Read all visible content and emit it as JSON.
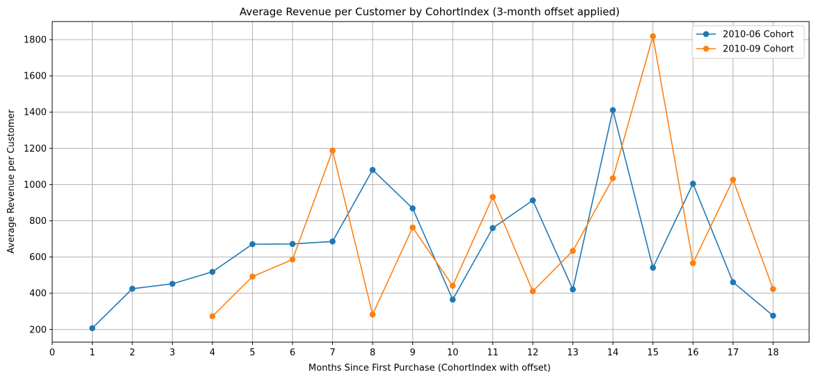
{
  "chart_data": {
    "type": "line",
    "title": "Average Revenue per Customer by CohortIndex (3-month offset applied)",
    "xlabel": "Months Since First Purchase (CohortIndex with offset)",
    "ylabel": "Average Revenue per Customer",
    "xlim": [
      0,
      18.9
    ],
    "ylim": [
      130,
      1900
    ],
    "x_ticks": [
      0,
      1,
      2,
      3,
      4,
      5,
      6,
      7,
      8,
      9,
      10,
      11,
      12,
      13,
      14,
      15,
      16,
      17,
      18
    ],
    "y_ticks": [
      200,
      400,
      600,
      800,
      1000,
      1200,
      1400,
      1600,
      1800
    ],
    "grid": true,
    "legend_position": "top-right",
    "series": [
      {
        "name": "2010-06 Cohort",
        "color": "#1f77b4",
        "x": [
          1,
          2,
          3,
          4,
          5,
          6,
          7,
          8,
          9,
          10,
          11,
          12,
          13,
          14,
          15,
          16,
          17,
          18
        ],
        "y": [
          207,
          425,
          452,
          518,
          671,
          672,
          686,
          1081,
          869,
          365,
          760,
          913,
          421,
          1411,
          541,
          1005,
          461,
          276
        ]
      },
      {
        "name": "2010-09 Cohort",
        "color": "#ff7f0e",
        "x": [
          4,
          5,
          6,
          7,
          8,
          9,
          10,
          11,
          12,
          13,
          14,
          15,
          16,
          17,
          18
        ],
        "y": [
          273,
          492,
          586,
          1188,
          283,
          763,
          441,
          932,
          411,
          634,
          1035,
          1819,
          566,
          1027,
          423
        ]
      }
    ]
  }
}
